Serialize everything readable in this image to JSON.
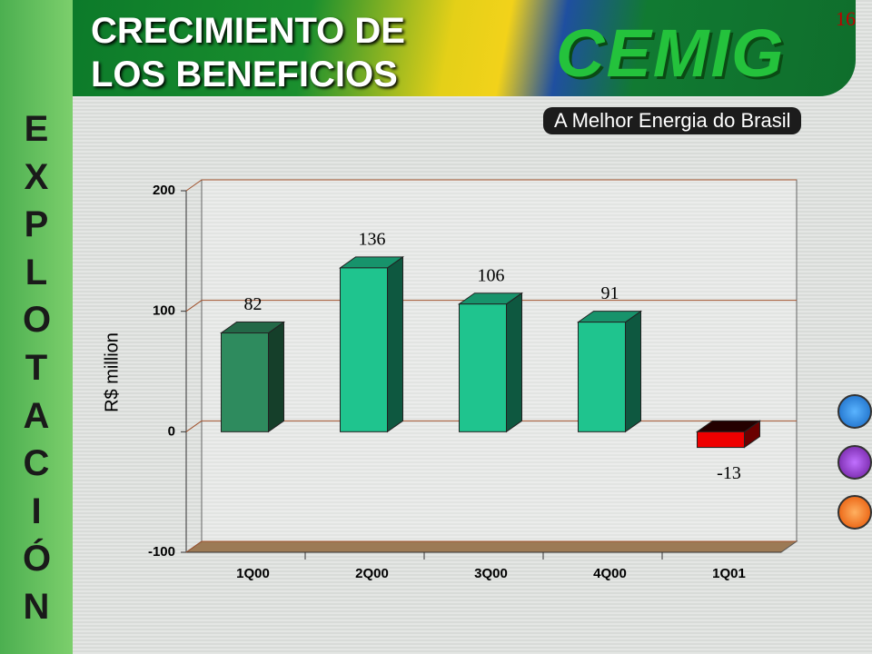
{
  "page_number": "16",
  "logo": {
    "name": "CEMIG",
    "tagline": "A Melhor Energia do Brasil"
  },
  "section": "EXPLOTACIÓN",
  "chart_data": {
    "type": "bar",
    "title": "CRECIMIENTO DE LOS BENEFICIOS",
    "y_label": "R$ million",
    "categories": [
      "1Q00",
      "2Q00",
      "3Q00",
      "4Q00",
      "1Q01"
    ],
    "values": [
      82,
      136,
      106,
      91,
      -13
    ],
    "colors": [
      "#2e8b5e",
      "#1fc48e",
      "#1fc48e",
      "#1fc48e",
      "#ee0000"
    ],
    "ylim": [
      -100,
      200
    ],
    "yticks": [
      -100,
      0,
      100,
      200
    ],
    "grid": true
  }
}
